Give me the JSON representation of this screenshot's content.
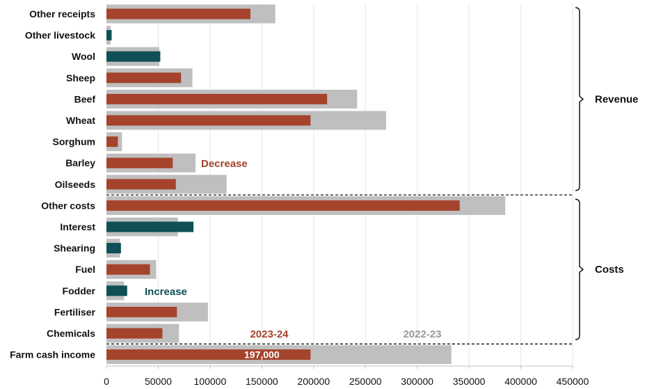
{
  "chart_data": {
    "type": "bar",
    "orientation": "horizontal",
    "categories": [
      "Other receipts",
      "Other livestock",
      "Wool",
      "Sheep",
      "Beef",
      "Wheat",
      "Sorghum",
      "Barley",
      "Oilseeds",
      "Other costs",
      "Interest",
      "Shearing",
      "Fuel",
      "Fodder",
      "Fertiliser",
      "Chemicals",
      "Farm cash income"
    ],
    "series": [
      {
        "name": "2022-23",
        "color": "#bfbfbf",
        "values": [
          163000,
          4000,
          51000,
          83000,
          242000,
          270000,
          15000,
          86000,
          116000,
          385000,
          69000,
          13000,
          48000,
          17000,
          98000,
          70000,
          333000
        ]
      },
      {
        "name": "2023-24",
        "color": "#a5432d",
        "values": [
          139000,
          5000,
          52000,
          72000,
          213000,
          197000,
          11000,
          64000,
          67000,
          341000,
          84000,
          14000,
          42000,
          20000,
          68000,
          54000,
          197000
        ]
      }
    ],
    "increase_color": "#0e5055",
    "increase_categories": [
      "Other livestock",
      "Wool",
      "Interest",
      "Shearing",
      "Fodder"
    ],
    "xlim": [
      0,
      450000
    ],
    "xticks": [
      "0",
      "50000",
      "100000",
      "150000",
      "200000",
      "250000",
      "300000",
      "350000",
      "400000",
      "450000"
    ],
    "xtick_values": [
      0,
      50000,
      100000,
      150000,
      200000,
      250000,
      300000,
      350000,
      400000,
      450000
    ],
    "groups": [
      {
        "label": "Revenue",
        "from": "Other receipts",
        "to": "Oilseeds"
      },
      {
        "label": "Costs",
        "from": "Other costs",
        "to": "Chemicals"
      }
    ],
    "annotations": {
      "decrease": {
        "text": "Decrease",
        "color": "#a5432d"
      },
      "increase": {
        "text": "Increase",
        "color": "#0e5055"
      },
      "legend_current": {
        "text": "2023-24",
        "color": "#a5432d"
      },
      "legend_previous": {
        "text": "2022-23",
        "color": "#999999"
      }
    },
    "data_label": {
      "category": "Farm cash income",
      "text": "197,000"
    },
    "grid": true
  }
}
